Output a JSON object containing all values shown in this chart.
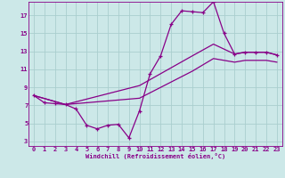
{
  "xlabel": "Windchill (Refroidissement éolien,°C)",
  "background_color": "#cce8e8",
  "grid_color": "#aacece",
  "line_color": "#880088",
  "xlim": [
    -0.5,
    23.5
  ],
  "ylim": [
    2.5,
    18.5
  ],
  "yticks": [
    3,
    5,
    7,
    9,
    11,
    13,
    15,
    17
  ],
  "xticks": [
    0,
    1,
    2,
    3,
    4,
    5,
    6,
    7,
    8,
    9,
    10,
    11,
    12,
    13,
    14,
    15,
    16,
    17,
    18,
    19,
    20,
    21,
    22,
    23
  ],
  "series1_x": [
    0,
    1,
    2,
    3,
    4,
    5,
    6,
    7,
    8,
    9,
    10,
    11,
    12,
    13,
    14,
    15,
    16,
    17,
    18,
    19,
    20,
    21,
    22,
    23
  ],
  "series1_y": [
    8.1,
    7.3,
    7.2,
    7.1,
    6.6,
    4.8,
    4.4,
    4.8,
    4.9,
    3.4,
    6.4,
    10.5,
    12.5,
    16.0,
    17.5,
    17.4,
    17.3,
    18.5,
    15.0,
    12.7,
    12.9,
    12.9,
    12.9,
    12.6
  ],
  "series2_x": [
    0,
    3,
    10,
    15,
    17,
    19,
    20,
    21,
    22,
    23
  ],
  "series2_y": [
    8.1,
    7.1,
    9.2,
    12.5,
    13.8,
    12.7,
    12.9,
    12.9,
    12.9,
    12.6
  ],
  "series3_x": [
    0,
    3,
    10,
    15,
    17,
    19,
    20,
    21,
    22,
    23
  ],
  "series3_y": [
    8.1,
    7.1,
    7.8,
    10.8,
    12.2,
    11.8,
    12.0,
    12.0,
    12.0,
    11.8
  ]
}
